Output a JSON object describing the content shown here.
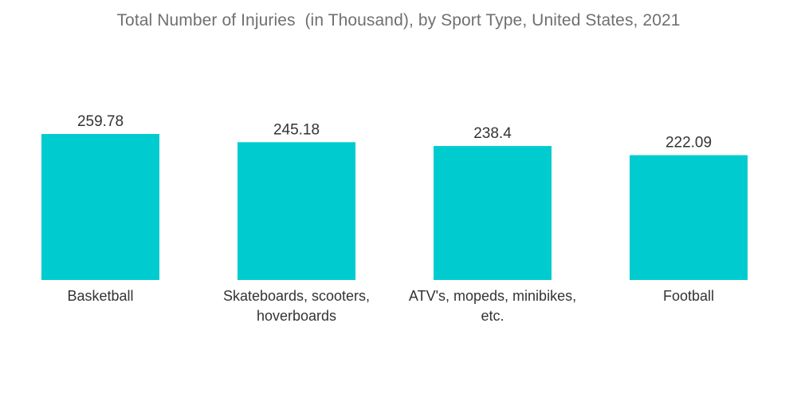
{
  "chart_data": {
    "type": "bar",
    "title": "Total Number of Injuries  (in Thousand), by Sport Type, United States, 2021",
    "categories": [
      [
        "Basketball"
      ],
      [
        "Skateboards, scooters,",
        "hoverboards"
      ],
      [
        "ATV's, mopeds, minibikes,",
        "etc."
      ],
      [
        "Football"
      ]
    ],
    "values": [
      259.78,
      245.18,
      238.4,
      222.09
    ],
    "value_labels": [
      "259.78",
      "245.18",
      "238.4",
      "222.09"
    ],
    "xlabel": "",
    "ylabel": "",
    "ylim": [
      0,
      259.78
    ],
    "grid": false,
    "legend": "none",
    "colors": {
      "bar": "#00cccf"
    }
  }
}
